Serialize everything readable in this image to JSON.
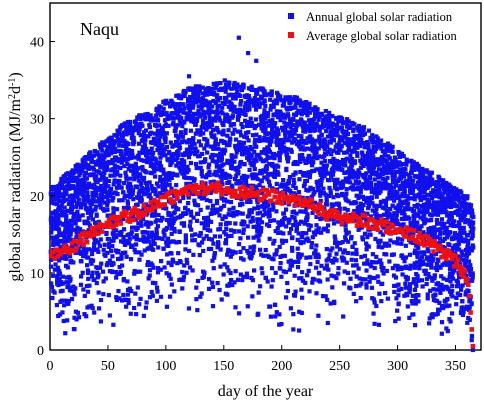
{
  "chart_data": {
    "type": "scatter",
    "annotation": "Naqu",
    "xlabel": "day of the year",
    "ylabel_main": "global solar radiation  (MJ/m",
    "ylabel_sup1": "2",
    "ylabel_mid": "d",
    "ylabel_sup2": "-1",
    "ylabel_end": ")",
    "xlim": [
      0,
      372
    ],
    "ylim": [
      0,
      45
    ],
    "x_ticks": [
      0,
      50,
      100,
      150,
      200,
      250,
      300,
      350
    ],
    "y_ticks": [
      0,
      10,
      20,
      30,
      40
    ],
    "grid": false,
    "legend_position": "top-right",
    "series": [
      {
        "name": "Annual global solar radiation",
        "color": "#1010ee",
        "marker": "square",
        "envelope": {
          "x": [
            1,
            30,
            60,
            90,
            120,
            150,
            180,
            210,
            240,
            270,
            300,
            330,
            360,
            365
          ],
          "upper": [
            21,
            25,
            29,
            31.5,
            34,
            35,
            34,
            33,
            31,
            29,
            26,
            23,
            20,
            18
          ],
          "lower": [
            1,
            2,
            2,
            3,
            4,
            4,
            3,
            2,
            3,
            2,
            2,
            1,
            1,
            0
          ]
        },
        "outliers": [
          {
            "x": 163,
            "y": 40.5
          },
          {
            "x": 171,
            "y": 38.5
          },
          {
            "x": 178,
            "y": 37.5
          },
          {
            "x": 120,
            "y": 35.5
          },
          {
            "x": 365,
            "y": 0
          }
        ]
      },
      {
        "name": "Average global solar radiation",
        "color": "#ee1010",
        "marker": "square",
        "x": [
          1,
          10,
          20,
          30,
          40,
          50,
          60,
          70,
          80,
          90,
          100,
          110,
          120,
          130,
          140,
          150,
          160,
          170,
          180,
          190,
          200,
          210,
          220,
          230,
          240,
          250,
          260,
          270,
          280,
          290,
          300,
          310,
          320,
          330,
          340,
          350,
          355,
          360,
          362,
          365
        ],
        "y": [
          12.5,
          13.0,
          13.5,
          14.5,
          15.5,
          16.5,
          17.0,
          17.5,
          18.0,
          19.0,
          19.5,
          20.0,
          20.5,
          20.8,
          21.0,
          20.8,
          20.5,
          20.3,
          20.2,
          20.0,
          19.8,
          19.5,
          19.0,
          18.5,
          17.5,
          17.2,
          17.0,
          16.8,
          16.5,
          16.0,
          15.5,
          15.0,
          14.5,
          13.5,
          12.5,
          11.5,
          10.5,
          9.0,
          7.0,
          0.5
        ]
      }
    ]
  }
}
